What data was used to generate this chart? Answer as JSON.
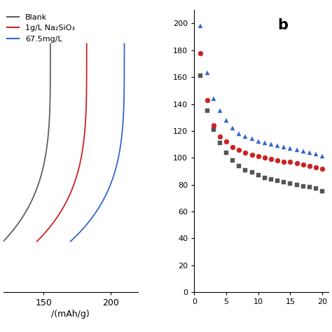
{
  "legend_entries": [
    {
      "label": "Blank",
      "color": "#606060"
    },
    {
      "label": "1g/L Na₂SiO₃",
      "color": "#cc2222"
    },
    {
      "label": "67.5mg/L",
      "color": "#3366cc"
    }
  ],
  "panel_a": {
    "curves": [
      {
        "color": "#606060",
        "x_max": 155,
        "x_min": 120,
        "slope": 3.5
      },
      {
        "color": "#cc2222",
        "x_max": 182,
        "x_min": 145,
        "slope": 3.5
      },
      {
        "color": "#3366cc",
        "x_max": 210,
        "x_min": 170,
        "slope": 3.5
      }
    ],
    "xlabel": "/(mAh/g)",
    "xlim": [
      120,
      220
    ],
    "ylim": [
      0.0,
      1.0
    ],
    "x_ticks": [
      150,
      200
    ],
    "x_tick_labels": [
      "150",
      "200"
    ]
  },
  "panel_b": {
    "label": "b",
    "series": [
      {
        "color": "#555555",
        "marker": "s",
        "x": [
          1,
          2,
          3,
          4,
          5,
          6,
          7,
          8,
          9,
          10,
          11,
          12,
          13,
          14,
          15,
          16,
          17,
          18,
          19,
          20
        ],
        "y": [
          161,
          135,
          121,
          111,
          104,
          98,
          94,
          91,
          89,
          87,
          85,
          84,
          83,
          82,
          81,
          80,
          79,
          78,
          77,
          75
        ]
      },
      {
        "color": "#cc2222",
        "marker": "o",
        "x": [
          1,
          2,
          3,
          4,
          5,
          6,
          7,
          8,
          9,
          10,
          11,
          12,
          13,
          14,
          15,
          16,
          17,
          18,
          19,
          20
        ],
        "y": [
          178,
          143,
          124,
          116,
          112,
          108,
          106,
          104,
          102,
          101,
          100,
          99,
          98,
          97,
          97,
          96,
          95,
          94,
          93,
          92
        ]
      },
      {
        "color": "#3366cc",
        "marker": "^",
        "x": [
          1,
          2,
          3,
          4,
          5,
          6,
          7,
          8,
          9,
          10,
          11,
          12,
          13,
          14,
          15,
          16,
          17,
          18,
          19,
          20
        ],
        "y": [
          198,
          163,
          144,
          135,
          128,
          122,
          118,
          116,
          114,
          112,
          111,
          110,
          109,
          108,
          107,
          106,
          105,
          104,
          103,
          101
        ]
      }
    ],
    "ylim": [
      0,
      210
    ],
    "xlim": [
      0,
      21
    ],
    "yticks": [
      0,
      20,
      40,
      60,
      80,
      100,
      120,
      140,
      160,
      180,
      200
    ],
    "xticks": [
      0,
      5,
      10,
      15,
      20
    ],
    "xtick_labels": [
      "0",
      "5",
      "10",
      "15",
      "20"
    ]
  },
  "background_color": "#ffffff"
}
